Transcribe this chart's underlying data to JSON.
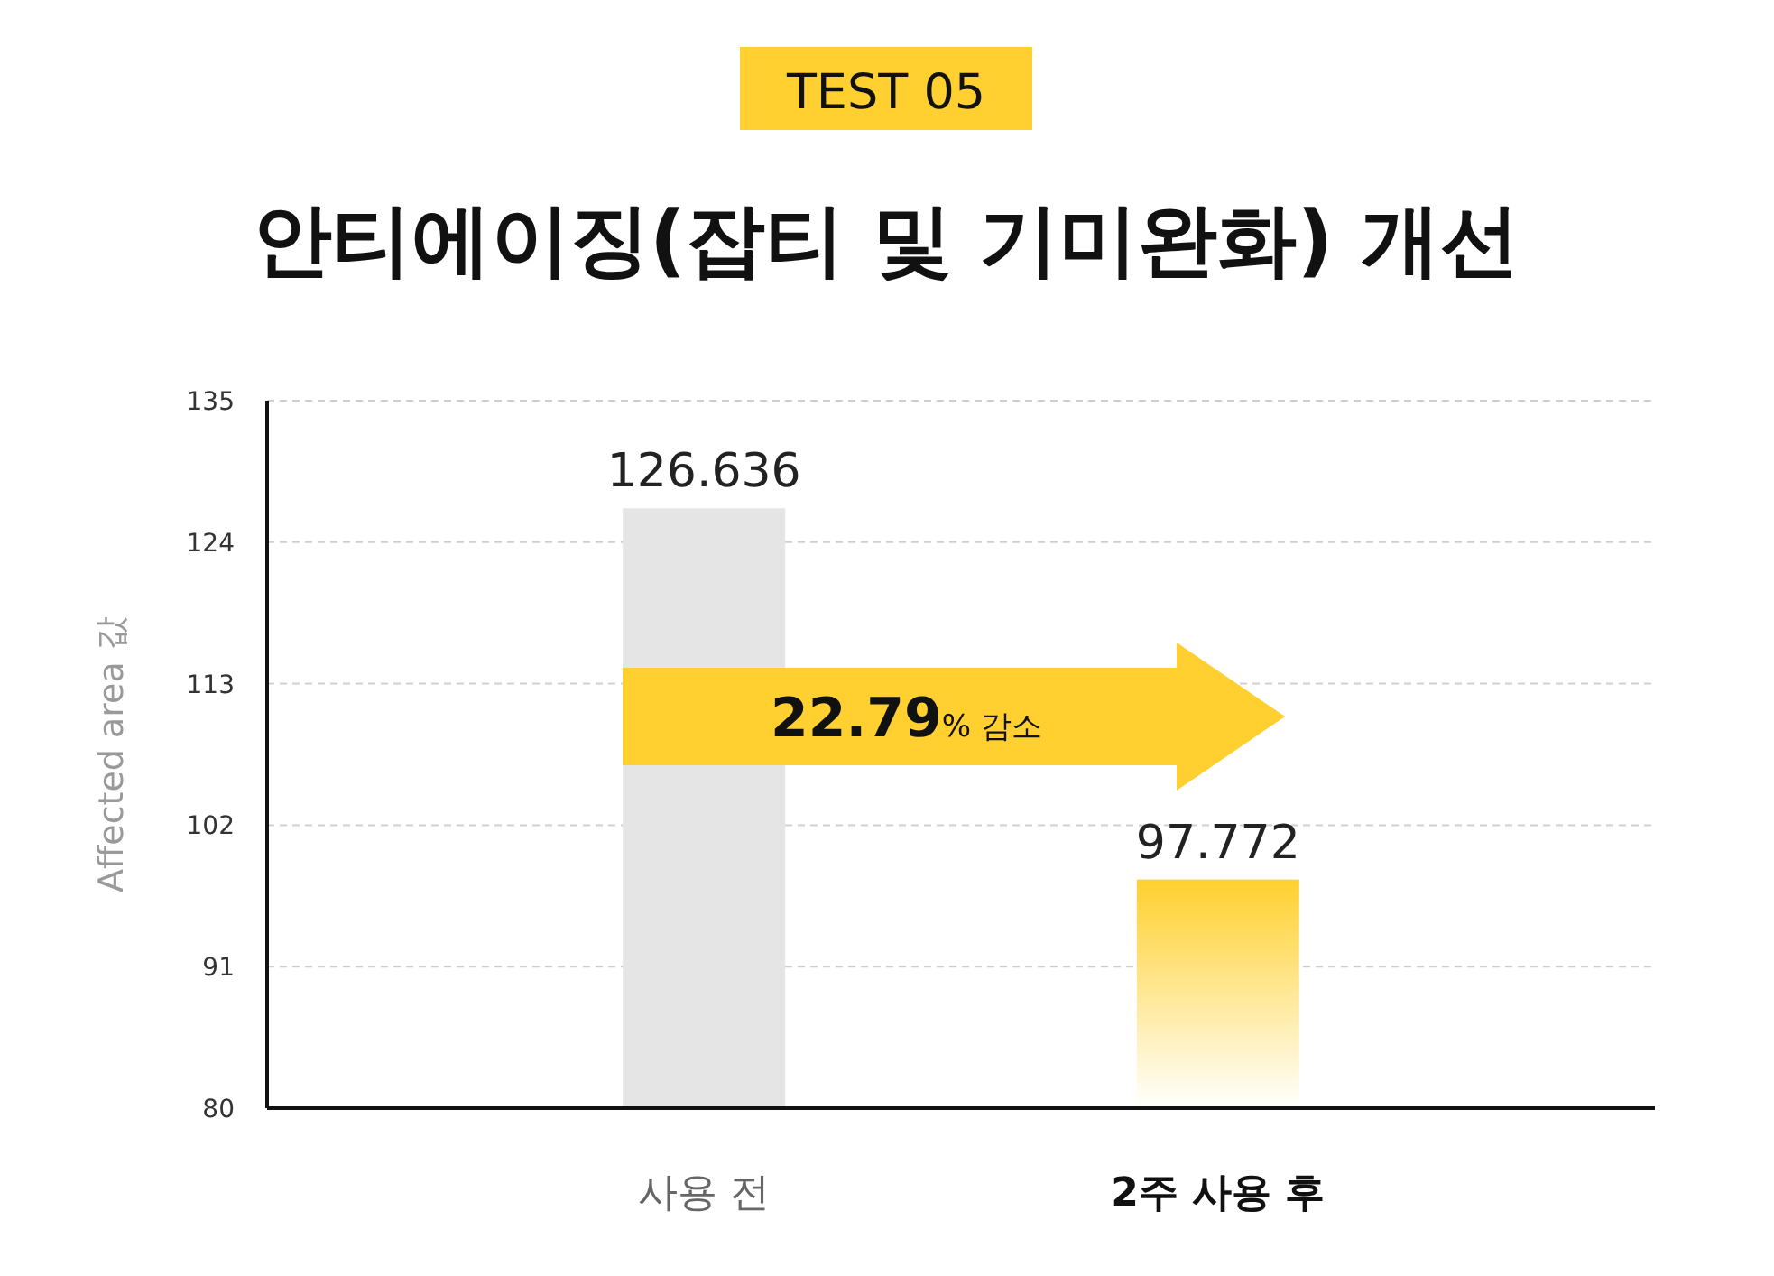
{
  "chart_data": {
    "type": "bar",
    "subtitle": "TEST 05",
    "title": "안티에이징(잡티 및 기미완화) 개선",
    "ylabel": "Affected area 값",
    "categories": [
      "사용 전",
      "2주 사용 후"
    ],
    "values": [
      126.636,
      97.772
    ],
    "colors": [
      "#e5e5e5",
      "#ffd02f"
    ],
    "ylim": [
      80,
      135
    ],
    "yticks": [
      80,
      91,
      102,
      113,
      124,
      135
    ],
    "grid": "y",
    "data_labels": true,
    "annotations": [
      "22.79% 감소"
    ]
  }
}
